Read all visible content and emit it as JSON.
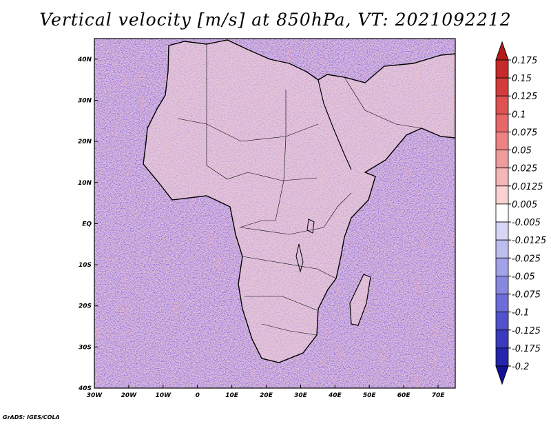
{
  "chart_data": {
    "type": "heatmap",
    "title": "Vertical velocity [m/s] at 850hPa, VT: 2021092212",
    "variable": "Vertical velocity",
    "units": "m/s",
    "level": "850hPa",
    "valid_time": "2021092212",
    "x_ticks": [
      "30W",
      "20W",
      "10W",
      "0",
      "10E",
      "20E",
      "30E",
      "40E",
      "50E",
      "60E",
      "70E"
    ],
    "x_values": [
      -30,
      -20,
      -10,
      0,
      10,
      20,
      30,
      40,
      50,
      60,
      70
    ],
    "xlim": [
      -30,
      75
    ],
    "y_ticks": [
      "40N",
      "30N",
      "20N",
      "10N",
      "EQ",
      "10S",
      "20S",
      "30S",
      "40S"
    ],
    "y_values": [
      40,
      30,
      20,
      10,
      0,
      -10,
      -20,
      -30,
      -40
    ],
    "ylim": [
      -40,
      45
    ],
    "colorbar": {
      "levels": [
        "0.175",
        "0.15",
        "0.125",
        "0.1",
        "0.075",
        "0.05",
        "0.025",
        "0.0125",
        "0.005",
        "-0.005",
        "-0.0125",
        "-0.025",
        "-0.05",
        "-0.075",
        "-0.1",
        "-0.125",
        "-0.175",
        "-0.2"
      ],
      "colors": [
        "#b41a1a",
        "#c62a2a",
        "#d43c3c",
        "#de5252",
        "#e66868",
        "#ec8282",
        "#f19c9c",
        "#f5b6b6",
        "#fad2d2",
        "#ffffff",
        "#d6d6f7",
        "#bdbdf0",
        "#a2a2e8",
        "#8888e0",
        "#6e6ed8",
        "#5252cc",
        "#3a3abf",
        "#2424ad",
        "#121299"
      ]
    }
  },
  "credit": "GrADS: IGES/COLA"
}
